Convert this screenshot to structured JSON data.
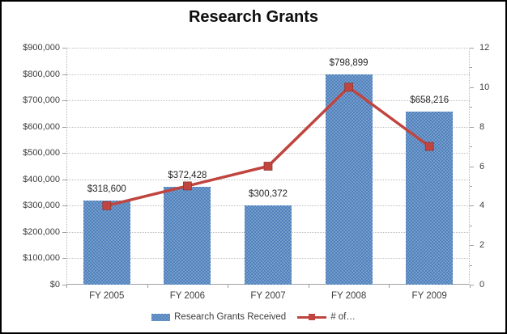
{
  "chart_data": {
    "type": "combo",
    "title": "Research Grants",
    "categories": [
      "FY 2005",
      "FY 2006",
      "FY 2007",
      "FY 2008",
      "FY 2009"
    ],
    "series": [
      {
        "name": "Research Grants Received",
        "chart_type": "bar",
        "axis": "left",
        "color": "#4f81bd",
        "values": [
          318600,
          372428,
          300372,
          798899,
          658216
        ],
        "data_labels": [
          "$318,600",
          "$372,428",
          "$300,372",
          "$798,899",
          "$658,216"
        ]
      },
      {
        "name": "# of…",
        "chart_type": "line",
        "axis": "right",
        "color": "#c0453f",
        "marker": "square",
        "values": [
          4,
          5,
          6,
          10,
          7
        ]
      }
    ],
    "left_axis": {
      "min": 0,
      "max": 900000,
      "step": 100000,
      "tick_labels": [
        "$0",
        "$100,000",
        "$200,000",
        "$300,000",
        "$400,000",
        "$500,000",
        "$600,000",
        "$700,000",
        "$800,000",
        "$900,000"
      ]
    },
    "right_axis": {
      "min": 0,
      "max": 12,
      "step": 2,
      "tick_labels": [
        "0",
        "2",
        "4",
        "6",
        "8",
        "10",
        "12"
      ]
    },
    "grid": {
      "horizontal": true,
      "style": "dotted"
    },
    "legend_position": "bottom"
  }
}
